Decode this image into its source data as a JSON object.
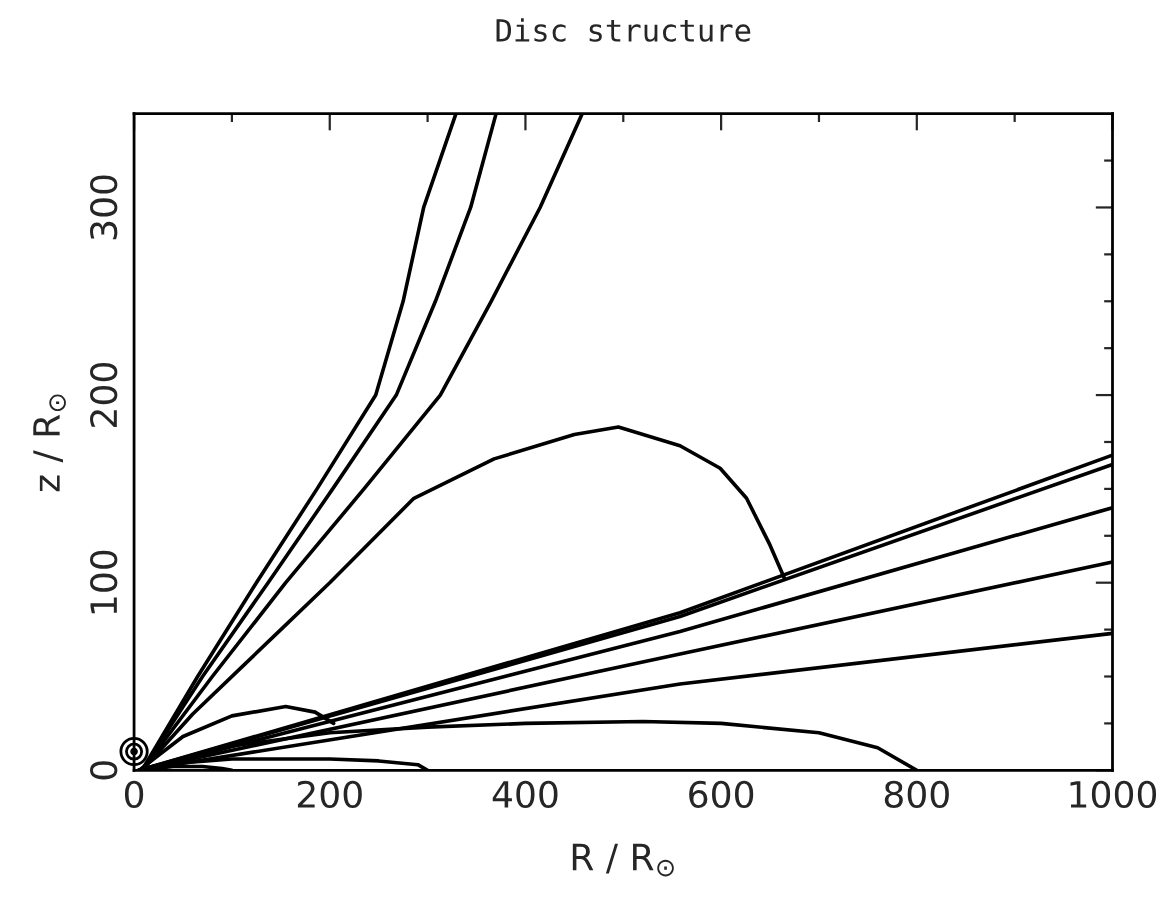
{
  "chart_data": {
    "type": "line",
    "title": "Disc structure",
    "xlabel": "R / R$_{⊙}$",
    "ylabel": "z / R$_{⊙}$",
    "xlim": [
      0,
      1000
    ],
    "ylim": [
      0,
      350
    ],
    "grid": false,
    "legend": false,
    "marker": "none",
    "line_style": "solid",
    "xticks": [
      0,
      {
        "value": 100,
        "label": null
      },
      200,
      {
        "value": 300,
        "label": null
      },
      400,
      {
        "value": 500,
        "label": null
      },
      600,
      {
        "value": 700,
        "label": null
      },
      800,
      {
        "value": 900,
        "label": null
      },
      1000
    ],
    "yticks": [
      0,
      {
        "value": 25,
        "label": null
      },
      {
        "value": 50,
        "label": null
      },
      {
        "value": 75,
        "label": null
      },
      100,
      {
        "value": 125,
        "label": null
      },
      {
        "value": 150,
        "label": null
      },
      {
        "value": 175,
        "label": null
      },
      200,
      {
        "value": 225,
        "label": null
      },
      {
        "value": 250,
        "label": null
      },
      {
        "value": 275,
        "label": null
      },
      300,
      {
        "value": 325,
        "label": null
      }
    ],
    "series": [
      {
        "color": "#000000",
        "x": [
          8,
          65,
          125,
          187,
          247,
          275,
          296,
          329
        ],
        "values": [
          0,
          50,
          100,
          150,
          200,
          250,
          300,
          350
        ]
      },
      {
        "color": "#000000",
        "x": [
          8,
          70,
          137,
          203,
          268,
          308,
          344,
          370
        ],
        "values": [
          0,
          50,
          100,
          150,
          200,
          250,
          300,
          350
        ]
      },
      {
        "color": "#000000",
        "x": [
          8,
          80,
          155,
          235,
          313,
          365,
          415,
          458
        ],
        "values": [
          0,
          50,
          100,
          150,
          200,
          250,
          300,
          350
        ]
      },
      {
        "color": "#000000",
        "x": [
          8,
          60,
          110,
          150,
          200,
          286,
          368,
          450,
          495,
          558,
          599,
          626,
          650,
          665
        ],
        "values": [
          0,
          30,
          55,
          75,
          100,
          145,
          166,
          179,
          183,
          173,
          161,
          145,
          120,
          102
        ]
      },
      {
        "color": "#000000",
        "x": [
          5,
          558,
          1000
        ],
        "values": [
          0,
          84,
          168
        ]
      },
      {
        "color": "#000000",
        "x": [
          5,
          558,
          1000
        ],
        "values": [
          0,
          82,
          163
        ]
      },
      {
        "color": "#000000",
        "x": [
          5,
          558,
          1000
        ],
        "values": [
          0,
          74,
          140
        ]
      },
      {
        "color": "#000000",
        "x": [
          5,
          558,
          1000
        ],
        "values": [
          0,
          62,
          111
        ]
      },
      {
        "color": "#000000",
        "x": [
          5,
          558,
          1000
        ],
        "values": [
          0,
          46,
          73
        ]
      },
      {
        "color": "#000000",
        "x": [
          5,
          100,
          200,
          300,
          400,
          520,
          600,
          700,
          760,
          800
        ],
        "values": [
          0,
          13,
          20,
          23,
          25,
          26,
          25,
          20,
          12,
          0
        ]
      },
      {
        "color": "#000000",
        "x": [
          5,
          50,
          100,
          155,
          185,
          204
        ],
        "values": [
          0,
          18,
          29,
          34,
          31,
          25
        ]
      },
      {
        "color": "#000000",
        "x": [
          5,
          50,
          100,
          150,
          200,
          250,
          290,
          300
        ],
        "values": [
          0,
          4,
          6,
          6,
          6,
          5,
          3,
          0
        ]
      },
      {
        "color": "#000000",
        "x": [
          5,
          40,
          70,
          90,
          100
        ],
        "values": [
          0,
          2,
          2,
          1,
          0
        ]
      },
      {
        "type": "scatter",
        "marker": "circle",
        "color": "#000000",
        "x": [
          0
        ],
        "values": [
          10
        ]
      }
    ]
  }
}
